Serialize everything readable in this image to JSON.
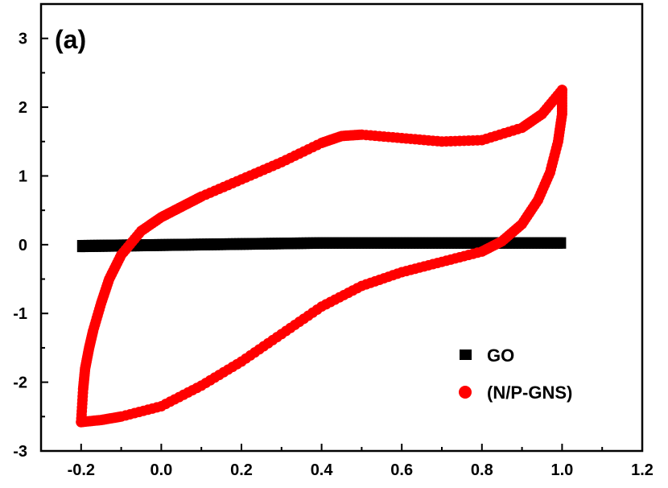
{
  "chart_data": {
    "type": "scatter",
    "panel_label": "(a)",
    "xlabel": "",
    "ylabel": "",
    "xlim": [
      -0.3,
      1.2
    ],
    "ylim": [
      -3,
      3.5
    ],
    "x_ticks": [
      "-0.2",
      "0.0",
      "0.2",
      "0.4",
      "0.6",
      "0.8",
      "1.0",
      "1.2"
    ],
    "y_ticks": [
      "-3",
      "-2",
      "-1",
      "0",
      "1",
      "2",
      "3"
    ],
    "grid": false,
    "legend": {
      "position": "bottom-right"
    },
    "series": [
      {
        "name": "GO",
        "color": "#000000",
        "marker": "square",
        "upper": [
          [
            -0.2,
            0.01
          ],
          [
            0.4,
            0.05
          ],
          [
            1.0,
            0.05
          ]
        ],
        "lower": [
          [
            -0.2,
            -0.05
          ],
          [
            0.4,
            0.0
          ],
          [
            1.0,
            0.0
          ]
        ]
      },
      {
        "name": "(N/P-GNS)",
        "color": "#ff0000",
        "marker": "circle",
        "upper": [
          [
            -0.2,
            -2.58
          ],
          [
            -0.195,
            -2.1
          ],
          [
            -0.19,
            -1.8
          ],
          [
            -0.18,
            -1.5
          ],
          [
            -0.17,
            -1.25
          ],
          [
            -0.15,
            -0.85
          ],
          [
            -0.13,
            -0.5
          ],
          [
            -0.1,
            -0.15
          ],
          [
            -0.05,
            0.2
          ],
          [
            0.0,
            0.4
          ],
          [
            0.05,
            0.55
          ],
          [
            0.1,
            0.7
          ],
          [
            0.2,
            0.95
          ],
          [
            0.3,
            1.2
          ],
          [
            0.4,
            1.48
          ],
          [
            0.45,
            1.58
          ],
          [
            0.5,
            1.6
          ],
          [
            0.6,
            1.55
          ],
          [
            0.7,
            1.5
          ],
          [
            0.8,
            1.52
          ],
          [
            0.9,
            1.7
          ],
          [
            0.95,
            1.9
          ],
          [
            1.0,
            2.25
          ]
        ],
        "lower": [
          [
            -0.2,
            -2.58
          ],
          [
            -0.15,
            -2.55
          ],
          [
            -0.1,
            -2.5
          ],
          [
            0.0,
            -2.35
          ],
          [
            0.1,
            -2.05
          ],
          [
            0.2,
            -1.7
          ],
          [
            0.3,
            -1.3
          ],
          [
            0.4,
            -0.9
          ],
          [
            0.5,
            -0.6
          ],
          [
            0.6,
            -0.4
          ],
          [
            0.7,
            -0.25
          ],
          [
            0.8,
            -0.1
          ],
          [
            0.85,
            0.05
          ],
          [
            0.9,
            0.3
          ],
          [
            0.94,
            0.65
          ],
          [
            0.97,
            1.05
          ],
          [
            0.99,
            1.5
          ],
          [
            1.0,
            1.9
          ],
          [
            1.0,
            2.25
          ]
        ]
      }
    ]
  }
}
